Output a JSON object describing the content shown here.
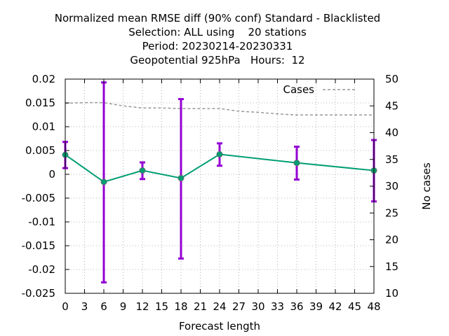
{
  "chart_data": {
    "type": "line",
    "title_lines": [
      "Normalized mean RMSE diff (90% conf) Standard - Blacklisted",
      "Selection: ALL using    20 stations",
      "Period: 20230214-20230331",
      "Geopotential 925hPa   Hours:  12"
    ],
    "xlabel": "Forecast length",
    "ylabel": "",
    "y2label": "No cases",
    "xlim": [
      0,
      48
    ],
    "ylim": [
      -0.025,
      0.02
    ],
    "y2lim": [
      10,
      50
    ],
    "x_ticks": [
      "0",
      "3",
      "6",
      "9",
      "12",
      "15",
      "18",
      "21",
      "24",
      "27",
      "30",
      "33",
      "36",
      "39",
      "42",
      "45",
      "48"
    ],
    "y_ticks": [
      "0.02",
      "0.015",
      "0.01",
      "0.005",
      "0",
      "-0.005",
      "-0.01",
      "-0.015",
      "-0.02",
      "-0.025"
    ],
    "y2_ticks": [
      "50",
      "45",
      "40",
      "35",
      "30",
      "25",
      "20",
      "15",
      "10"
    ],
    "grid": true,
    "legend_position": "top-right",
    "series": [
      {
        "kind": "line-with-errorbars",
        "color": "#009e73",
        "errorbar_color": "#9400d3",
        "x": [
          0,
          6,
          12,
          18,
          24,
          36,
          48
        ],
        "y": [
          0.0041,
          -0.0016,
          0.0008,
          -0.0008,
          0.0042,
          0.0024,
          0.0008
        ],
        "y_low": [
          0.0013,
          -0.0227,
          -0.001,
          -0.0177,
          0.0018,
          -0.0011,
          -0.0057
        ],
        "y_high": [
          0.0068,
          0.0193,
          0.0025,
          0.0158,
          0.0065,
          0.0058,
          0.0072
        ]
      },
      {
        "name": "Cases",
        "kind": "dashed-line",
        "axis": "y2",
        "color": "#999999",
        "x": [
          0,
          3,
          6,
          9,
          12,
          15,
          18,
          21,
          24,
          27,
          30,
          33,
          36,
          39,
          42,
          45,
          48
        ],
        "y": [
          45.5,
          45.6,
          45.6,
          45.0,
          44.6,
          44.6,
          44.5,
          44.5,
          44.5,
          44.0,
          43.8,
          43.5,
          43.3,
          43.3,
          43.3,
          43.3,
          43.3
        ]
      }
    ]
  }
}
